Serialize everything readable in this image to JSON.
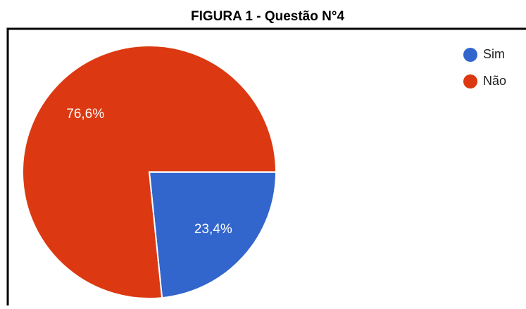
{
  "chart_data": {
    "type": "pie",
    "title": "FIGURA 1 - Questão N°4",
    "categories": [
      "Sim",
      "Não"
    ],
    "values": [
      23.4,
      76.6
    ],
    "value_labels": [
      "23,4%",
      "76,6%"
    ],
    "colors": [
      "#3366cc",
      "#dc3912"
    ],
    "legend": "top-right"
  }
}
